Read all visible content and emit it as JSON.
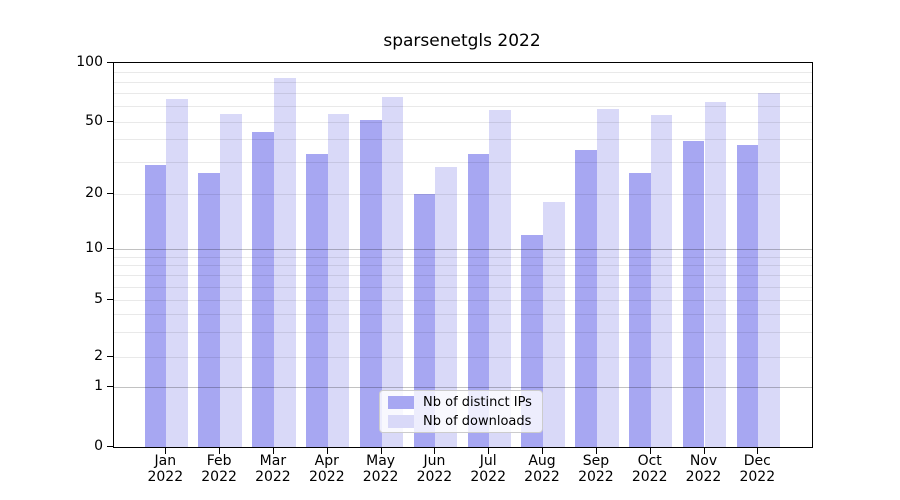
{
  "title": "sparsenetgls 2022",
  "legend": {
    "items": [
      {
        "label": "Nb of distinct IPs",
        "color": "#a7a7f2"
      },
      {
        "label": "Nb of downloads",
        "color": "#d9d9f8"
      }
    ]
  },
  "chart_data": {
    "type": "bar",
    "title": "sparsenetgls 2022",
    "categories": [
      "Jan 2022",
      "Feb 2022",
      "Mar 2022",
      "Apr 2022",
      "May 2022",
      "Jun 2022",
      "Jul 2022",
      "Aug 2022",
      "Sep 2022",
      "Oct 2022",
      "Nov 2022",
      "Dec 2022"
    ],
    "series": [
      {
        "name": "Nb of distinct IPs",
        "color": "#a7a7f2",
        "values": [
          29,
          26,
          44,
          33,
          51,
          20,
          33,
          12,
          35,
          26,
          39,
          37
        ]
      },
      {
        "name": "Nb of downloads",
        "color": "#d9d9f8",
        "values": [
          65,
          55,
          84,
          55,
          67,
          28,
          57,
          18,
          58,
          54,
          63,
          70
        ]
      }
    ],
    "ylim": [
      0,
      100
    ],
    "yscale": "symlog",
    "yticks": [
      0,
      1,
      2,
      5,
      10,
      20,
      50,
      100
    ],
    "major_gridlines": [
      1,
      10,
      100
    ],
    "minor_gridlines": [
      2,
      3,
      4,
      5,
      6,
      7,
      8,
      9,
      20,
      30,
      40,
      50,
      60,
      70,
      80,
      90
    ],
    "grid": "horizontal major+minor, drawn over bars",
    "legend_position": "lower center",
    "xlabel": "",
    "ylabel": ""
  },
  "colors": {
    "ips_bar": "#a7a7f2",
    "downloads_bar": "#d9d9f8",
    "spine": "#000000",
    "legend_border": "#cccccc",
    "background": "#ffffff"
  }
}
